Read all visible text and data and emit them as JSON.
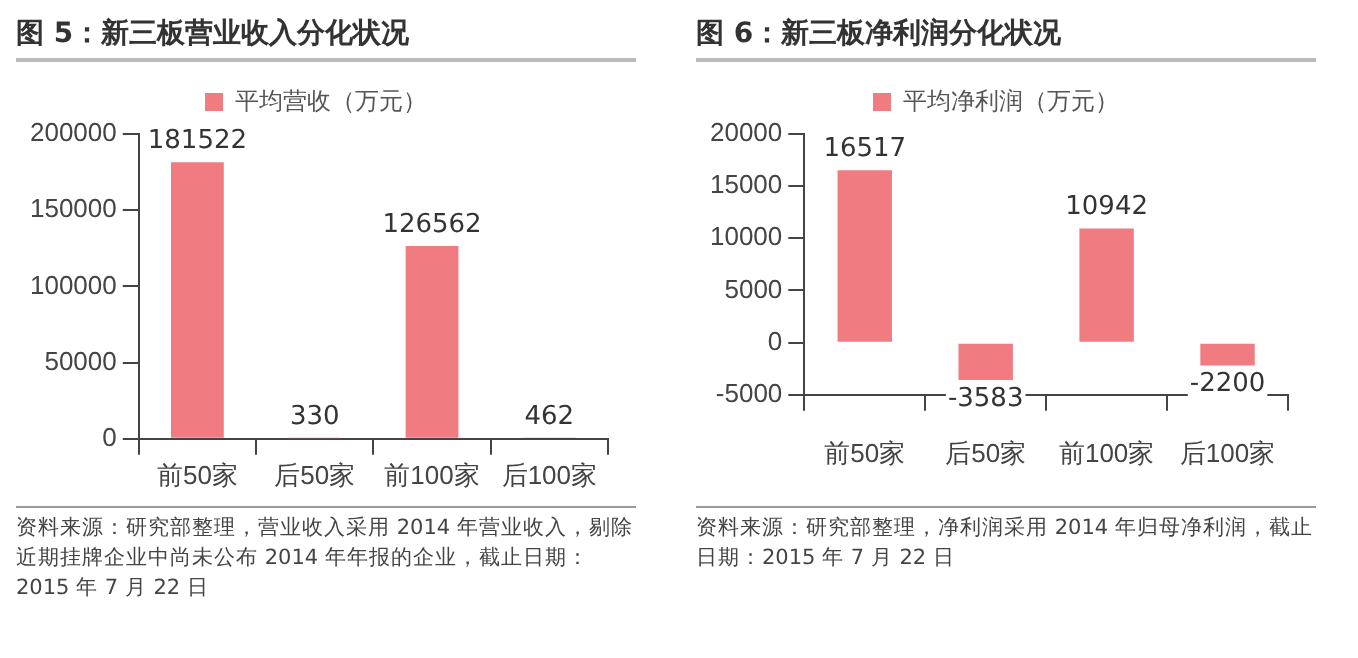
{
  "chart_data": [
    {
      "type": "bar",
      "title": "图 5：新三板营业收入分化状况",
      "categories": [
        "前50家",
        "后50家",
        "前100家",
        "后100家"
      ],
      "series": [
        {
          "name": "平均营收（万元）",
          "color": "#f07c82",
          "values": [
            181522,
            330,
            126562,
            462
          ]
        }
      ],
      "ylim": [
        0,
        200000
      ],
      "yticks": [
        0,
        50000,
        100000,
        150000,
        200000
      ],
      "grid": false,
      "legend": "top",
      "data_labels": true,
      "annotations": [
        "资料来源：研究部整理，营业收入采用 2014 年营业收入，剔除近期挂牌企业中尚未公布 2014 年年报的企业，截止日期：2015 年 7 月 22 日"
      ]
    },
    {
      "type": "bar",
      "title": "图 6：新三板净利润分化状况",
      "categories": [
        "前50家",
        "后50家",
        "前100家",
        "后100家"
      ],
      "series": [
        {
          "name": "平均净利润（万元）",
          "color": "#f07c82",
          "values": [
            16517,
            -3583,
            10942,
            -2200
          ]
        }
      ],
      "ylim": [
        -5000,
        20000
      ],
      "yticks": [
        -5000,
        0,
        5000,
        10000,
        15000,
        20000
      ],
      "grid": false,
      "legend": "top",
      "data_labels": true,
      "annotations": [
        "资料来源：研究部整理，净利润采用 2014 年归母净利润，截止日期：2015 年 7 月 22 日"
      ]
    }
  ]
}
